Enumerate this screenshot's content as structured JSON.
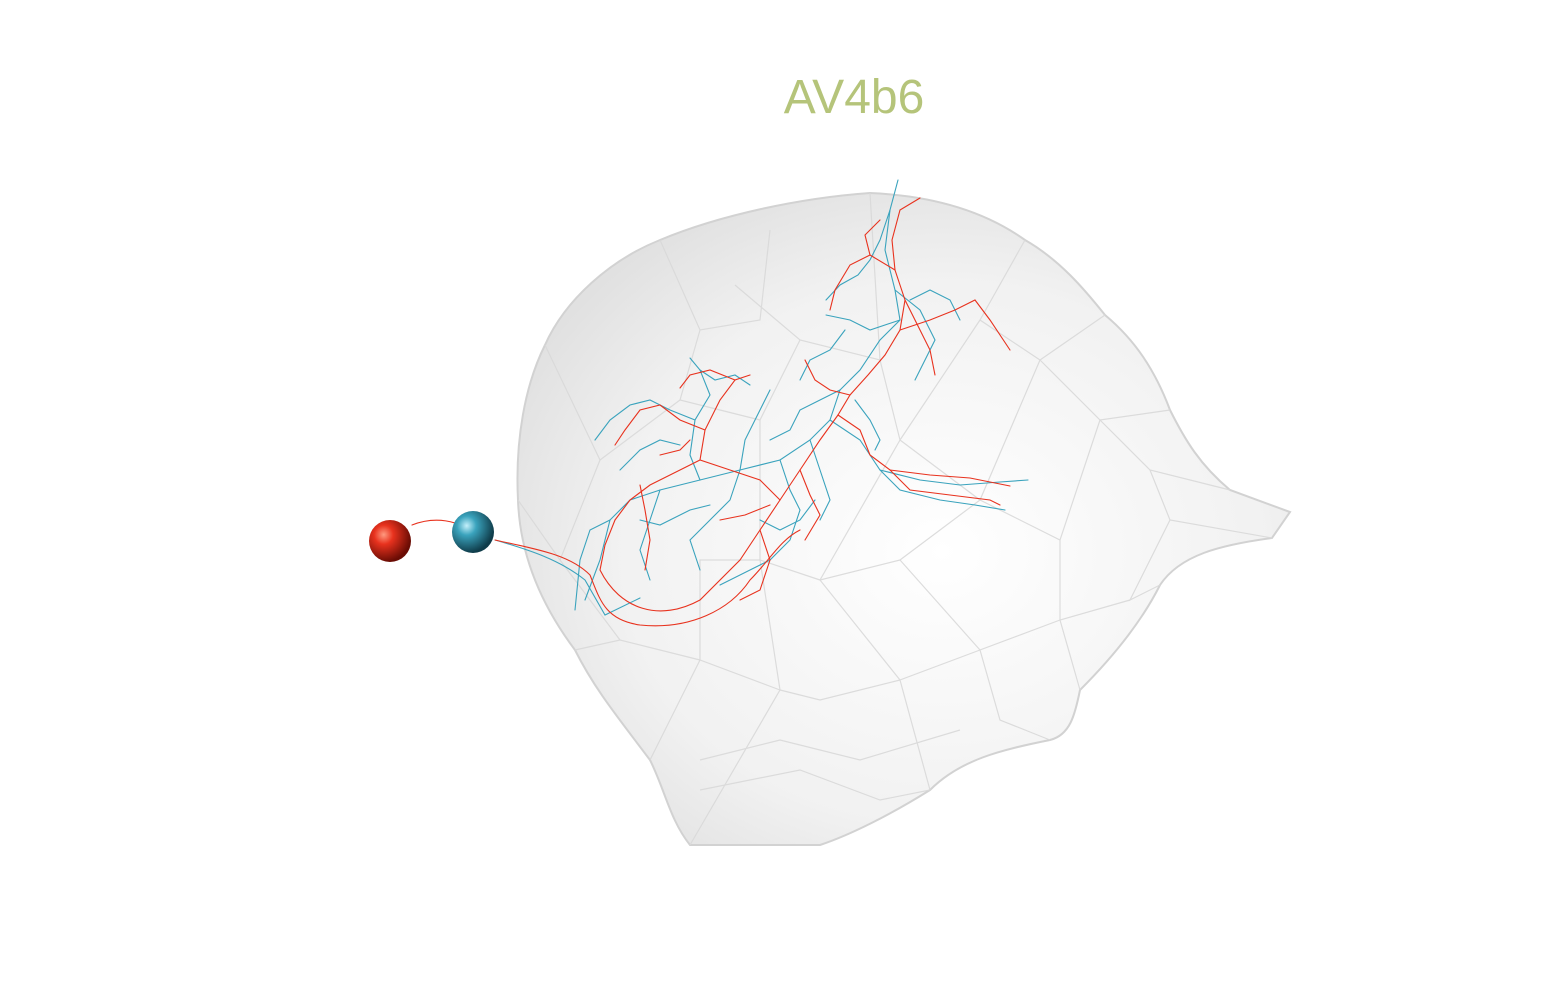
{
  "title": "AV4b6",
  "colors": {
    "title": "#b5c47a",
    "neuron_a": "#e8321e",
    "neuron_b": "#3aa3bd",
    "mesh_fill": "#e6e6e6",
    "mesh_edge": "#cfcfcf",
    "background": "#ffffff"
  },
  "legend": {
    "neuron_a_marker": "red-sphere",
    "neuron_b_marker": "teal-sphere"
  }
}
